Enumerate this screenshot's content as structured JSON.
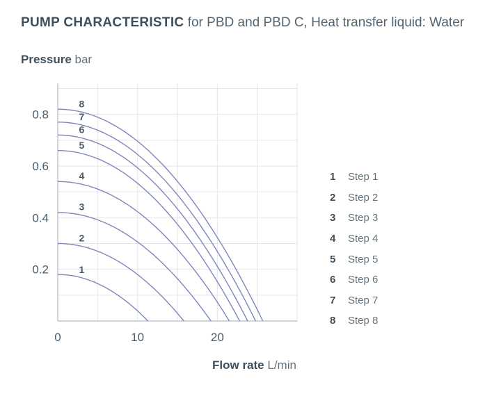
{
  "title": {
    "bold": "PUMP CHARACTERISTIC",
    "rest": " for PBD and PBD C, Heat transfer liquid: Water"
  },
  "colors": {
    "curve": "#7f86bb",
    "grid": "#e3e6e9",
    "axis": "#b5bcc2",
    "text": "#4a5a66"
  },
  "chart_data": {
    "type": "line",
    "title": "PUMP CHARACTERISTIC for PBD and PBD C, Heat transfer liquid: Water",
    "ylabel_bold": "Pressure",
    "ylabel_unit": "bar",
    "xlabel_bold": "Flow rate",
    "xlabel_unit": "L/min",
    "xlim": [
      0,
      30
    ],
    "ylim": [
      0,
      0.92
    ],
    "xticks": [
      0,
      10,
      20
    ],
    "yticks": [
      0.2,
      0.4,
      0.6,
      0.8
    ],
    "xtick_labels": [
      "0",
      "10",
      "20"
    ],
    "ytick_labels": [
      "0.2",
      "0.4",
      "0.6",
      "0.8"
    ],
    "grid": true,
    "legend_position": "right",
    "series": [
      {
        "label": "1",
        "legend": "Step 1",
        "max_pressure": 0.18,
        "max_flow": 11.3
      },
      {
        "label": "2",
        "legend": "Step 2",
        "max_pressure": 0.3,
        "max_flow": 15.8
      },
      {
        "label": "3",
        "legend": "Step 3",
        "max_pressure": 0.42,
        "max_flow": 19.2
      },
      {
        "label": "4",
        "legend": "Step 4",
        "max_pressure": 0.54,
        "max_flow": 21.5
      },
      {
        "label": "5",
        "legend": "Step 5",
        "max_pressure": 0.66,
        "max_flow": 22.8
      },
      {
        "label": "6",
        "legend": "Step 6",
        "max_pressure": 0.72,
        "max_flow": 23.8
      },
      {
        "label": "7",
        "legend": "Step 7",
        "max_pressure": 0.77,
        "max_flow": 24.8
      },
      {
        "label": "8",
        "legend": "Step 8",
        "max_pressure": 0.82,
        "max_flow": 25.7
      }
    ]
  }
}
